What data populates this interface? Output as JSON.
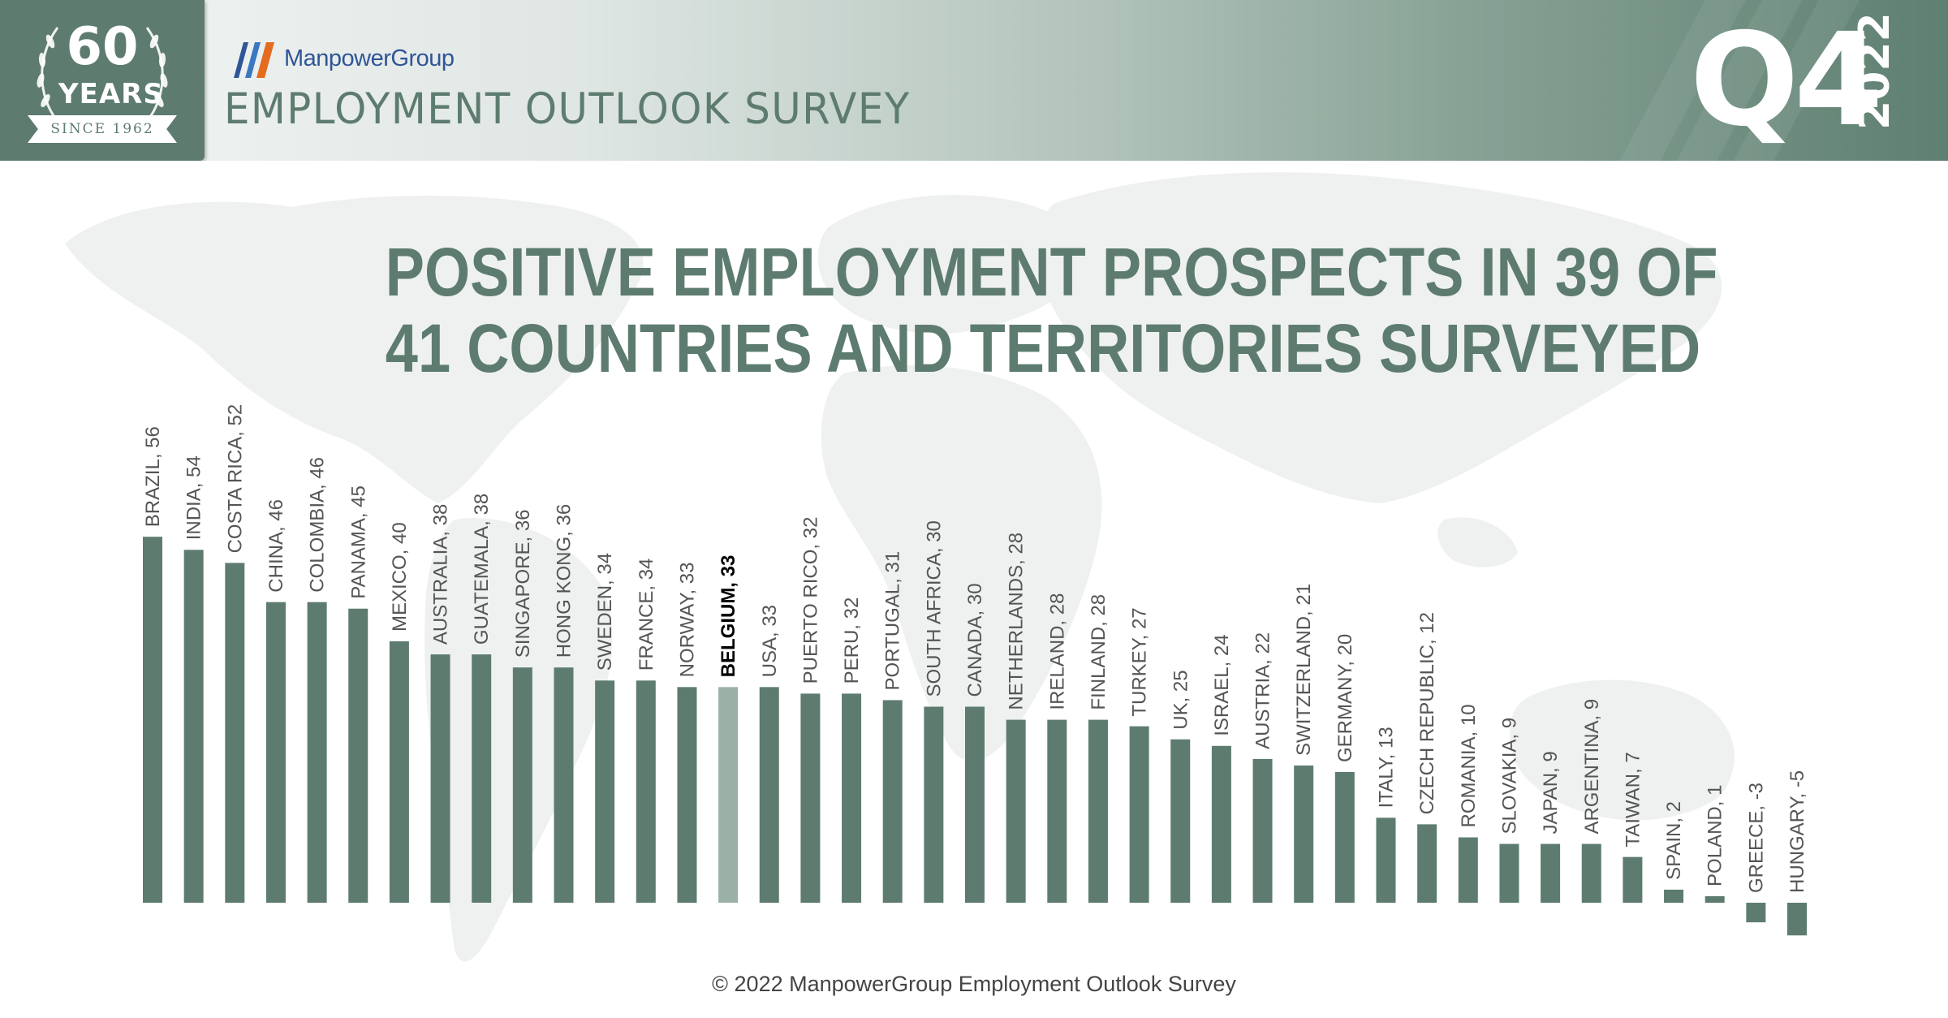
{
  "header": {
    "badge_number": "60",
    "badge_years": "YEARS",
    "badge_since": "SINCE 1962",
    "brand": "ManpowerGroup",
    "survey_title": "EMPLOYMENT OUTLOOK SURVEY",
    "quarter": "Q4",
    "year": "2022"
  },
  "headline": {
    "line1": "POSITIVE EMPLOYMENT PROSPECTS IN 39 OF",
    "line2": "41 COUNTRIES AND TERRITORIES SURVEYED"
  },
  "footer": {
    "copyright": "© 2022 ManpowerGroup Employment Outlook Survey"
  },
  "colors": {
    "bar": "#5d7c6f",
    "highlight_bar": "#9bb0a6",
    "label": "#555555",
    "highlight_label": "#000000",
    "heading": "#5d7c6f",
    "header_dark": "#5d7c6f",
    "map": "#eef1f0"
  },
  "chart_data": {
    "type": "bar",
    "title": "",
    "xlabel": "",
    "ylabel": "",
    "ylim": [
      -5,
      56
    ],
    "grid": false,
    "legend": "none",
    "highlight": "BELGIUM",
    "categories": [
      "BRAZIL",
      "INDIA",
      "COSTA RICA",
      "CHINA",
      "COLOMBIA",
      "PANAMA",
      "MEXICO",
      "AUSTRALIA",
      "GUATEMALA",
      "SINGAPORE",
      "HONG KONG",
      "SWEDEN",
      "FRANCE",
      "NORWAY",
      "BELGIUM",
      "USA",
      "PUERTO RICO",
      "PERU",
      "PORTUGAL",
      "SOUTH AFRICA",
      "CANADA",
      "NETHERLANDS",
      "IRELAND",
      "FINLAND",
      "TURKEY",
      "UK",
      "ISRAEL",
      "AUSTRIA",
      "SWITZERLAND",
      "GERMANY",
      "ITALY",
      "CZECH REPUBLIC",
      "ROMANIA",
      "SLOVAKIA",
      "JAPAN",
      "ARGENTINA",
      "TAIWAN",
      "SPAIN",
      "POLAND",
      "GREECE",
      "HUNGARY"
    ],
    "values": [
      56,
      54,
      52,
      46,
      46,
      45,
      40,
      38,
      38,
      36,
      36,
      34,
      34,
      33,
      33,
      33,
      32,
      32,
      31,
      30,
      30,
      28,
      28,
      28,
      27,
      25,
      24,
      22,
      21,
      20,
      13,
      12,
      10,
      9,
      9,
      9,
      7,
      2,
      1,
      -3,
      -5
    ],
    "labels": [
      "BRAZIL, 56",
      "INDIA, 54",
      "COSTA RICA, 52",
      "CHINA, 46",
      "COLOMBIA, 46",
      "PANAMA, 45",
      "MEXICO, 40",
      "AUSTRALIA, 38",
      "GUATEMALA, 38",
      "SINGAPORE, 36",
      "HONG KONG, 36",
      "SWEDEN, 34",
      "FRANCE, 34",
      "NORWAY, 33",
      "BELGIUM, 33",
      "USA, 33",
      "PUERTO RICO, 32",
      "PERU, 32",
      "PORTUGAL, 31",
      "SOUTH AFRICA, 30",
      "CANADA, 30",
      "NETHERLANDS, 28",
      "IRELAND, 28",
      "FINLAND, 28",
      "TURKEY, 27",
      "UK, 25",
      "ISRAEL, 24",
      "AUSTRIA, 22",
      "SWITZERLAND, 21",
      "GERMANY, 20",
      "ITALY, 13",
      "CZECH REPUBLIC, 12",
      "ROMANIA, 10",
      "SLOVAKIA, 9",
      "JAPAN, 9",
      "ARGENTINA, 9",
      "TAIWAN, 7",
      "SPAIN, 2",
      "POLAND, 1",
      "GREECE, -3",
      "HUNGARY, -5"
    ]
  }
}
